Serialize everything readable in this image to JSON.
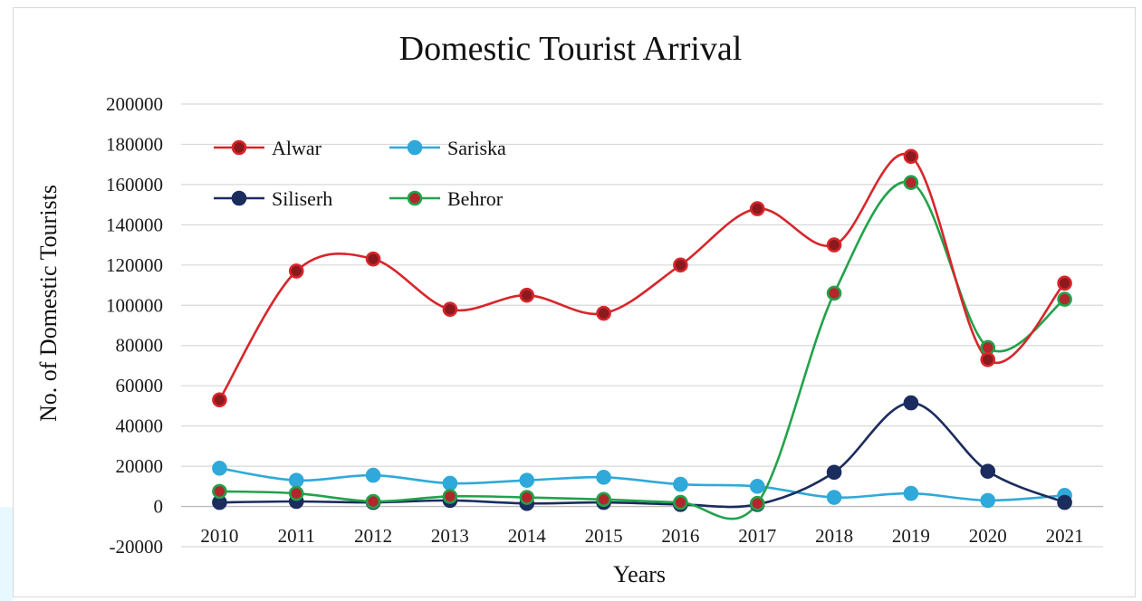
{
  "chart_data": {
    "type": "line",
    "title": "Domestic Tourist Arrival",
    "xlabel": "Years",
    "ylabel": "No. of Domestic Tourists",
    "categories": [
      "2010",
      "2011",
      "2012",
      "2013",
      "2014",
      "2015",
      "2016",
      "2017",
      "2018",
      "2019",
      "2020",
      "2021"
    ],
    "ylim": [
      -20000,
      200000
    ],
    "yticks": [
      -20000,
      0,
      20000,
      40000,
      60000,
      80000,
      100000,
      120000,
      140000,
      160000,
      180000,
      200000
    ],
    "grid": true,
    "legend_position": "top-left",
    "series": [
      {
        "name": "Alwar",
        "color": "#d7262b",
        "marker_fill": "#8b1a1e",
        "values": [
          53000,
          117000,
          123000,
          98000,
          105000,
          96000,
          120000,
          148000,
          130000,
          174000,
          73000,
          111000
        ]
      },
      {
        "name": "Sariska",
        "color": "#2fa9d9",
        "marker_fill": "#2fa9d9",
        "values": [
          19000,
          13000,
          15500,
          11500,
          13000,
          14500,
          11000,
          10000,
          4500,
          6500,
          3000,
          5500
        ]
      },
      {
        "name": "Siliserh",
        "color": "#1b2c5e",
        "marker_fill": "#1b2c5e",
        "values": [
          2000,
          2500,
          2000,
          3000,
          1500,
          2000,
          1000,
          1000,
          17000,
          51500,
          17500,
          2000
        ]
      },
      {
        "name": "Behror",
        "color": "#22a24b",
        "marker_fill": "#b3262b",
        "values": [
          7500,
          6500,
          2500,
          5000,
          4500,
          3500,
          2000,
          1500,
          106000,
          161000,
          79000,
          103000
        ]
      }
    ]
  }
}
